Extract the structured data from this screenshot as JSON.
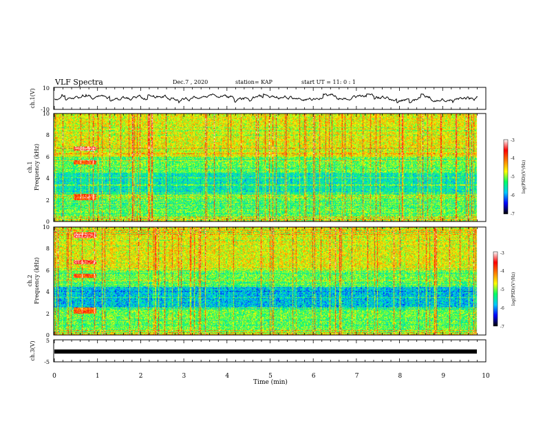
{
  "header": {
    "title": "VLF Spectra",
    "date": "Dec.7 , 2020",
    "station": "station= KAP",
    "start": "start  UT =   11: 0  : 1"
  },
  "colors": {
    "spectral": [
      "#000000",
      "#0000ff",
      "#00c8ff",
      "#00ff66",
      "#ffff00",
      "#ff8000",
      "#ff0000",
      "#ffffff"
    ]
  },
  "chart_data": [
    {
      "type": "line",
      "panel": "ch1-waveform",
      "ylabel": "ch.1(V)",
      "ylim": [
        -10,
        10
      ],
      "yticks": [
        "10",
        "-10"
      ],
      "xlim": [
        0,
        10
      ],
      "amplitude_range": [
        -4,
        4
      ]
    },
    {
      "type": "heatmap",
      "panel": "ch1-spectrogram",
      "ylabel_top": "ch.1",
      "ylabel": "Frequency (kHz)",
      "ylim": [
        0,
        10
      ],
      "yticks": [
        "0",
        "2",
        "4",
        "6",
        "8",
        "10"
      ],
      "xlim": [
        0,
        10
      ],
      "data_extent_min": 9.8,
      "colorbar": {
        "label": "log(PSD)(V²/Hz)",
        "range": [
          -7,
          -3
        ],
        "ticks": [
          "-3",
          "-4",
          "-5",
          "-6",
          "-7"
        ]
      }
    },
    {
      "type": "heatmap",
      "panel": "ch2-spectrogram",
      "ylabel_top": "ch.2",
      "ylabel": "Frequency (kHz)",
      "ylim": [
        0,
        10
      ],
      "yticks": [
        "0",
        "2",
        "4",
        "6",
        "8",
        "10"
      ],
      "xlim": [
        0,
        10
      ],
      "data_extent_min": 9.8,
      "colorbar": {
        "label": "log(PSD)(V²/Hz)",
        "range": [
          -7,
          -3
        ],
        "ticks": [
          "-3",
          "-4",
          "-5",
          "-6",
          "-7"
        ]
      }
    },
    {
      "type": "line",
      "panel": "ch3-waveform",
      "ylabel": "ch.3(V)",
      "ylim": [
        -5,
        5
      ],
      "yticks": [
        "5",
        "-5"
      ],
      "xlim": [
        0,
        10
      ],
      "level": 0
    }
  ],
  "xaxis": {
    "label": "Time (min)",
    "ticks": [
      "0",
      "1",
      "2",
      "3",
      "4",
      "5",
      "6",
      "7",
      "8",
      "9",
      "10"
    ]
  }
}
